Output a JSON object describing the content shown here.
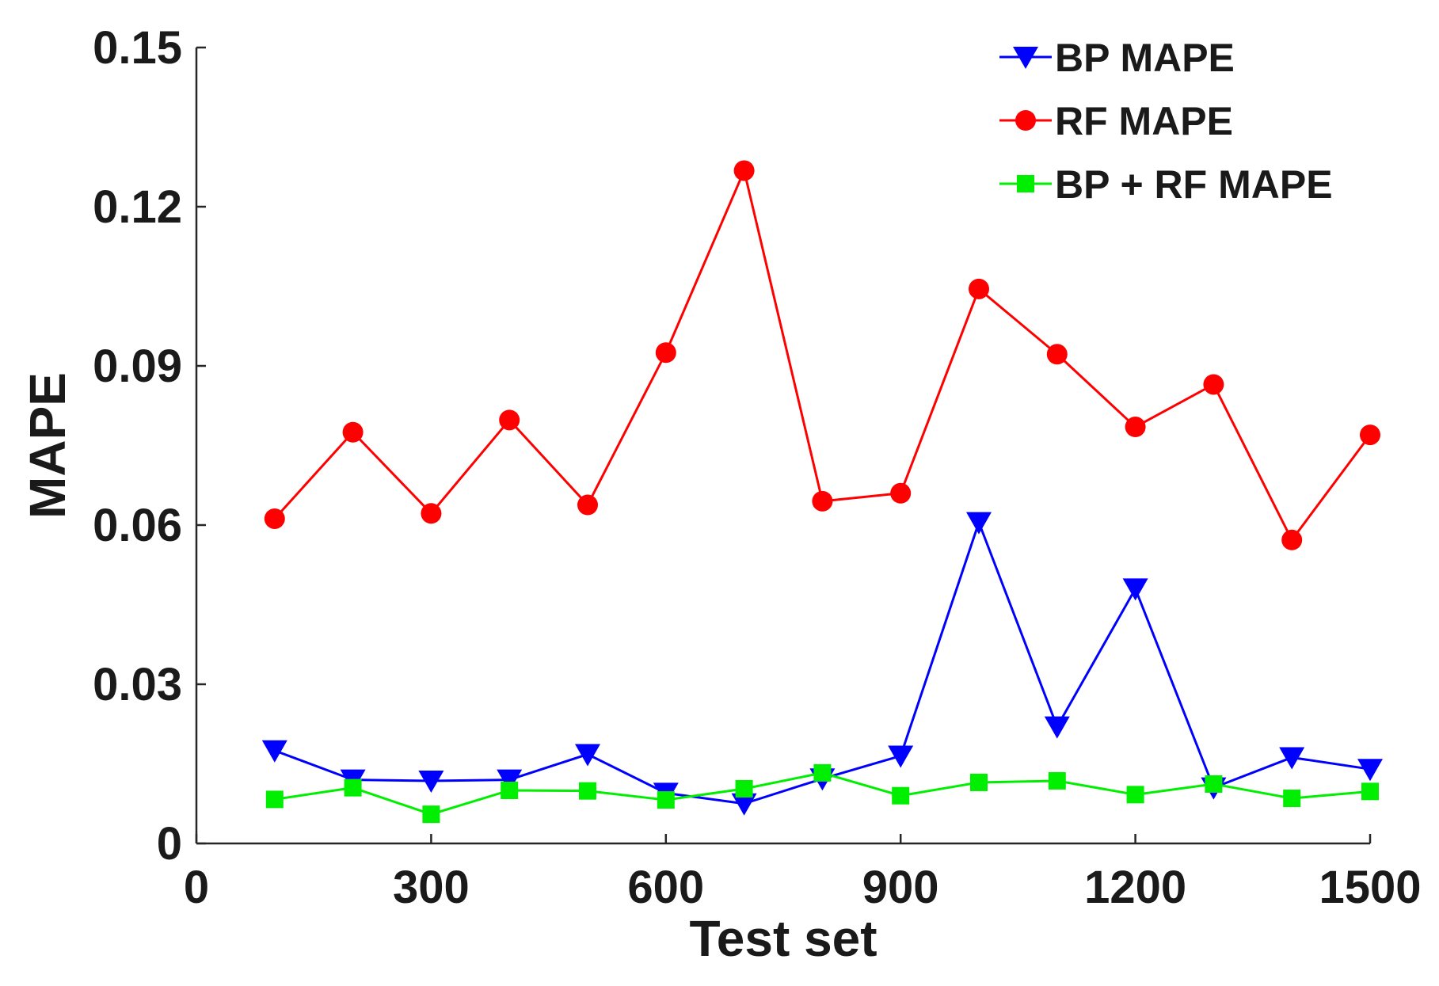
{
  "chart_data": {
    "type": "line",
    "title": "",
    "xlabel": "Test set",
    "ylabel": "MAPE",
    "xlim": [
      0,
      1500
    ],
    "ylim": [
      0,
      0.15
    ],
    "xticks": [
      0,
      300,
      600,
      900,
      1200,
      1500
    ],
    "yticks": [
      0,
      0.03,
      0.06,
      0.09,
      0.12,
      0.15
    ],
    "xtick_labels": [
      "0",
      "300",
      "600",
      "900",
      "1200",
      "1500"
    ],
    "ytick_labels": [
      "0",
      "0.03",
      "0.06",
      "0.09",
      "0.12",
      "0.15"
    ],
    "grid": false,
    "legend_position": "top-right",
    "x": [
      100,
      200,
      300,
      400,
      500,
      600,
      700,
      800,
      900,
      1000,
      1100,
      1200,
      1300,
      1400,
      1500
    ],
    "series": [
      {
        "name": "BP MAPE",
        "color": "#0000ff",
        "marker": "triangle-down",
        "values": [
          0.0175,
          0.012,
          0.0118,
          0.012,
          0.0168,
          0.0095,
          0.0075,
          0.0122,
          0.0165,
          0.0605,
          0.022,
          0.048,
          0.0105,
          0.0162,
          0.014
        ]
      },
      {
        "name": "RF MAPE",
        "color": "#ff0000",
        "marker": "circle",
        "values": [
          0.0612,
          0.0775,
          0.0622,
          0.0798,
          0.0638,
          0.0925,
          0.1268,
          0.0645,
          0.066,
          0.1045,
          0.0922,
          0.0785,
          0.0865,
          0.0572,
          0.077
        ]
      },
      {
        "name": "BP + RF MAPE",
        "color": "#00ee00",
        "marker": "square",
        "values": [
          0.0083,
          0.0105,
          0.0055,
          0.01,
          0.0099,
          0.0082,
          0.0103,
          0.0133,
          0.009,
          0.0115,
          0.0118,
          0.0092,
          0.0112,
          0.0085,
          0.0098
        ]
      }
    ]
  }
}
